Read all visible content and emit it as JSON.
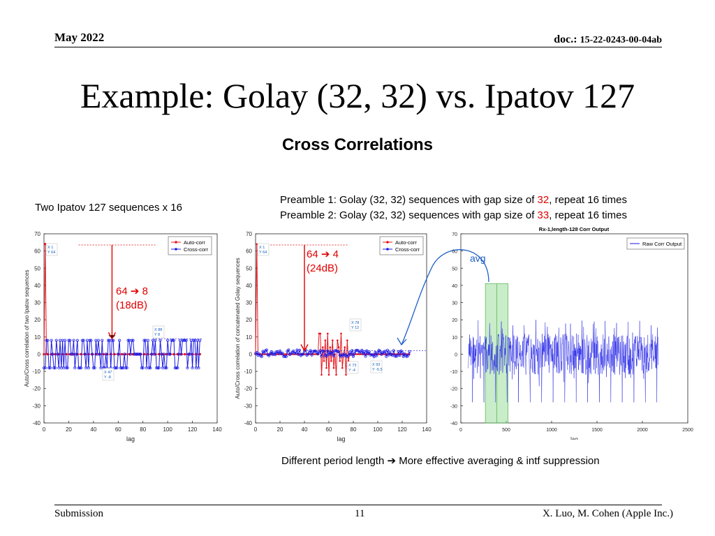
{
  "header": {
    "date": "May 2022",
    "doc_label": "doc.:",
    "doc_number": "15-22-0243-00-04ab"
  },
  "title": "Example: Golay (32, 32) vs. Ipatov 127",
  "subtitle": "Cross Correlations",
  "label_left": "Two Ipatov 127 sequences x 16",
  "preamble1": {
    "prefix": "Preamble 1: Golay (32, 32) sequences with gap size of ",
    "gap": "32",
    "suffix": ", repeat 16 times"
  },
  "preamble2": {
    "prefix": "Preamble 2: Golay (32, 32) sequences with gap size of ",
    "gap": "33",
    "suffix": ", repeat 16 times"
  },
  "bottom_note": "Different period length ➔ More effective averaging & intf suppression",
  "footer": {
    "left": "Submission",
    "page": "11",
    "right": "X. Luo, M. Cohen (Apple Inc.)"
  },
  "colors": {
    "auto": "#e8141b",
    "cross": "#1a1ae6",
    "raw": "#1a1ae6",
    "annot_red": "#e00000",
    "highlight": "#9ddc9d",
    "arrow": "#1f5fc8"
  },
  "chart_data": [
    {
      "type": "line",
      "xlabel": "lag",
      "ylabel": "Auto/Cross correlation of two Ipatov sequences",
      "xlim": [
        0,
        140
      ],
      "ylim": [
        -40,
        70
      ],
      "xticks": [
        0,
        20,
        40,
        60,
        80,
        100,
        120,
        140
      ],
      "yticks": [
        -40,
        -30,
        -20,
        -10,
        0,
        10,
        20,
        30,
        40,
        50,
        60,
        70
      ],
      "legend": [
        "Auto-corr",
        "Cross-corr"
      ],
      "legend_position": "top-right",
      "series": [
        {
          "name": "Auto-corr",
          "peak": [
            1,
            64
          ],
          "baseline": 0,
          "n": 127
        },
        {
          "name": "Cross-corr",
          "levels": [
            8,
            0,
            -8
          ],
          "n": 127
        }
      ],
      "datatips": [
        {
          "x_label": "X 1",
          "y_label": "Y 64"
        },
        {
          "x_label": "X 88",
          "y_label": "Y 8"
        },
        {
          "x_label": "X 47",
          "y_label": "Y -8"
        }
      ],
      "annotation": {
        "line1": "64 ➔ 8",
        "line2": "(18dB)"
      }
    },
    {
      "type": "line",
      "xlabel": "lag",
      "ylabel": "Auto/Cross correlation of concatenated Golay sequences",
      "xlim": [
        0,
        140
      ],
      "ylim": [
        -40,
        70
      ],
      "xticks": [
        0,
        20,
        40,
        60,
        80,
        100,
        120,
        140
      ],
      "yticks": [
        -40,
        -30,
        -20,
        -10,
        0,
        10,
        20,
        30,
        40,
        50,
        60,
        70
      ],
      "legend": [
        "Auto-corr",
        "Cross-corr"
      ],
      "legend_position": "top-right",
      "series": [
        {
          "name": "Auto-corr",
          "peak": [
            1,
            64
          ],
          "sidelobes": [
            12,
            -12
          ],
          "sidelobe_range": [
            50,
            76
          ]
        },
        {
          "name": "Cross-corr",
          "range": [
            -1.5,
            2.5
          ],
          "n": 127
        }
      ],
      "datatips": [
        {
          "x_label": "X 1",
          "y_label": "Y 64"
        },
        {
          "x_label": "X 78",
          "y_label": "Y 12"
        },
        {
          "x_label": "X 73",
          "y_label": "Y -4"
        },
        {
          "x_label": "X 93",
          "y_label": "Y -5.5"
        }
      ],
      "annotation": {
        "line1": "64 ➔ 4",
        "line2": "(24dB)"
      }
    },
    {
      "type": "line",
      "title": "Rx-1,length-128 Corr Output",
      "xlabel": "lag",
      "xlim": [
        0,
        2500
      ],
      "ylim": [
        -40,
        70
      ],
      "xticks": [
        0,
        500,
        1000,
        1500,
        2000,
        2500
      ],
      "yticks": [
        -40,
        -30,
        -20,
        -10,
        0,
        10,
        20,
        30,
        40,
        50,
        60,
        70
      ],
      "legend": [
        "Raw Corr Output"
      ],
      "legend_position": "top-right",
      "series": [
        {
          "name": "Raw Corr Output",
          "range": [
            -30,
            20
          ],
          "n": 2176,
          "spike_period": 127
        }
      ],
      "highlight": {
        "x": [
          270,
          520
        ],
        "divider": 395,
        "ytop": 41
      },
      "annotation": "avg"
    }
  ]
}
